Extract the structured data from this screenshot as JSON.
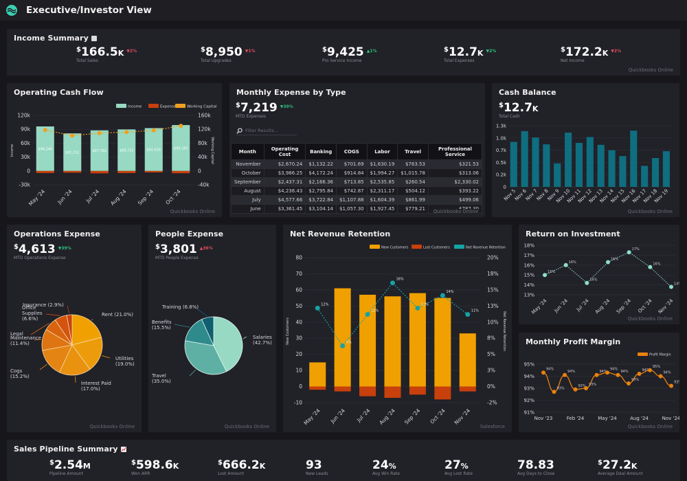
{
  "app": {
    "title": "Executive/Investor View",
    "logo_icon": "wave-logo-icon"
  },
  "income_summary": {
    "title": "Income Summary",
    "title_icon": "notebook-icon",
    "source": "Quickbooks Online",
    "kpis": [
      {
        "currency": "$",
        "value": "166.5",
        "suffix": "K",
        "delta": "▼2%",
        "delta_class": "down-red",
        "label": "Total Sales"
      },
      {
        "currency": "$",
        "value": "8,950",
        "suffix": "",
        "delta": "▼1%",
        "delta_class": "down-red",
        "label": "Total Upgrades"
      },
      {
        "currency": "$",
        "value": "9,425",
        "suffix": "",
        "delta": "▲1%",
        "delta_class": "up-green",
        "label": "Pro Service Income"
      },
      {
        "currency": "$",
        "value": "12.7",
        "suffix": "K",
        "delta": "▼2%",
        "delta_class": "down-green",
        "label": "Total Expenses"
      },
      {
        "currency": "$",
        "value": "172.2",
        "suffix": "K",
        "delta": "▼2%",
        "delta_class": "down-red",
        "label": "Net Income"
      }
    ]
  },
  "operating_cash_flow": {
    "title": "Operating Cash Flow",
    "source": "Quickbooks Online",
    "chart_data": {
      "type": "bar",
      "categories": [
        "May '24",
        "Jun '24",
        "Jul '24",
        "Aug '24",
        "Sep '24",
        "Oct '24"
      ],
      "series": [
        {
          "name": "Income",
          "values": [
            96246,
            81252,
            87782,
            89753,
            92616,
            99283
          ],
          "labels": [
            "$96,246",
            "$81,252",
            "$87,782",
            "$89,753",
            "$92,616",
            "$99,283"
          ],
          "color": "#97d9c2"
        },
        {
          "name": "Expenses",
          "values": [
            -4500,
            -3800,
            -5200,
            -4600,
            -3200,
            -5000
          ],
          "color": "#c8400c"
        },
        {
          "name": "Working Capital",
          "values": [
            118000,
            102000,
            109000,
            112000,
            117000,
            130000
          ],
          "color": "#f0a020",
          "axis": "right"
        }
      ],
      "ylabel": "Income",
      "y2label": "Working Capital",
      "ylim": [
        -30000,
        120000
      ],
      "y2lim": [
        -40000,
        160000
      ],
      "yticks": [
        "-30k",
        "0",
        "30k",
        "60k",
        "90k",
        "120k"
      ],
      "y2ticks": [
        "-40k",
        "0",
        "40k",
        "80k",
        "120k",
        "160k"
      ],
      "legend": [
        "Income",
        "Expenses",
        "Working Capital"
      ],
      "legend_position": "top-right"
    }
  },
  "monthly_expense": {
    "title": "Monthly Expense by Type",
    "kpi": {
      "currency": "$",
      "value": "7,219",
      "delta": "▼39%",
      "label": "MTD Expenses"
    },
    "filter_placeholder": "Filter Results...",
    "source": "Quickbooks Online",
    "columns": [
      "Month",
      "Operating Cost",
      "Banking",
      "COGS",
      "Labor",
      "Travel",
      "Professional Service"
    ],
    "rows": [
      [
        "November",
        "$2,670.24",
        "$1,132.22",
        "$701.69",
        "$1,630.19",
        "$763.53",
        "$321.53"
      ],
      [
        "October",
        "$3,986.25",
        "$4,172.24",
        "$914.84",
        "$1,994.27",
        "$1,015.78",
        "$313.06"
      ],
      [
        "September",
        "$2,437.31",
        "$2,166.36",
        "$713.85",
        "$2,535.85",
        "$260.54",
        "$2,330.02"
      ],
      [
        "August",
        "$4,236.43",
        "$2,795.84",
        "$742.87",
        "$2,311.17",
        "$504.12",
        "$393.22"
      ],
      [
        "July",
        "$4,577.66",
        "$3,722.84",
        "$1,107.88",
        "$1,604.39",
        "$861.99",
        "$499.06"
      ],
      [
        "June",
        "$3,361.45",
        "$3,104.14",
        "$1,057.30",
        "$1,927.45",
        "$779.21",
        "$787.30"
      ]
    ]
  },
  "cash_balance": {
    "title": "Cash Balance",
    "kpi": {
      "currency": "$",
      "value": "12.7",
      "suffix": "K",
      "label": "Total Cash"
    },
    "source": "Quickbooks Online",
    "chart_data": {
      "type": "bar",
      "categories": [
        "Nov 5",
        "Nov 6",
        "Nov 7",
        "Nov 8",
        "Nov 9",
        "Nov 10",
        "Nov 11",
        "Nov 12",
        "Nov 13",
        "Nov 14",
        "Nov 15",
        "Nov 16",
        "Nov 17",
        "Nov 18",
        "Nov 19"
      ],
      "values": [
        920,
        1140,
        1010,
        870,
        480,
        1110,
        900,
        1020,
        860,
        750,
        630,
        1150,
        430,
        590,
        730
      ],
      "ylim": [
        0,
        1250
      ],
      "yticks": [
        "0",
        "0.2k",
        "0.5k",
        "0.7k",
        "1.0k",
        "1.3k"
      ],
      "color": "#0f6e80"
    }
  },
  "operations_expense": {
    "title": "Operations Expense",
    "kpi": {
      "currency": "$",
      "value": "4,613",
      "delta": "▼39%",
      "label": "MTD Operations Expense"
    },
    "source": "Quickbooks Online",
    "chart_data": {
      "type": "pie",
      "slices": [
        {
          "label": "Rent",
          "pct": 21.0,
          "color": "#f0a000"
        },
        {
          "label": "Utilities",
          "pct": 19.0,
          "color": "#ec9c0a"
        },
        {
          "label": "Interest Paid",
          "pct": 17.0,
          "color": "#e89210"
        },
        {
          "label": "Cogs",
          "pct": 15.2,
          "color": "#e48412"
        },
        {
          "label": "Maintenance",
          "pct": 11.4,
          "color": "#de7412"
        },
        {
          "label": "Legal",
          "pct": 7.0,
          "color": "#d86410"
        },
        {
          "label": "Office Supplies",
          "pct": 6.6,
          "color": "#d2540e"
        },
        {
          "label": "Insurance",
          "pct": 2.9,
          "color": "#c8420c"
        }
      ],
      "labels": [
        "Rent (21.0%)",
        "Utilities (19.0%)",
        "Interest Paid (17.0%)",
        "Cogs (15.2%)",
        "Maintenance (11.4%)",
        "Legal (7.0%)",
        "Office Supplies (6.6%)",
        "Insurance (2.9%)"
      ]
    }
  },
  "people_expense": {
    "title": "People Expense",
    "kpi": {
      "currency": "$",
      "value": "3,801",
      "delta": "▲36%",
      "label": "MTD People Expense"
    },
    "source": "Quickbooks Online",
    "chart_data": {
      "type": "pie",
      "slices": [
        {
          "label": "Salaries",
          "pct": 42.7,
          "color": "#97d9c2"
        },
        {
          "label": "Travel",
          "pct": 35.0,
          "color": "#5fb0a4"
        },
        {
          "label": "Benefits",
          "pct": 15.5,
          "color": "#2f8a8c"
        },
        {
          "label": "Training",
          "pct": 6.8,
          "color": "#105f70"
        }
      ],
      "labels": [
        "Salaries (42.7%)",
        "Travel (35.0%)",
        "Benefits (15.5%)",
        "Training (6.8%)"
      ]
    }
  },
  "net_revenue_retention": {
    "title": "Net Revenue Retention",
    "source": "Salesforce",
    "chart_data": {
      "type": "bar",
      "categories": [
        "May '24",
        "Jun '24",
        "Jul '24",
        "Aug '24",
        "Sep '24",
        "Oct '24",
        "Nov '24"
      ],
      "series": [
        {
          "name": "New Customers",
          "values": [
            15,
            61,
            57,
            56,
            58,
            55,
            33
          ],
          "color": "#f0a000"
        },
        {
          "name": "Lost Customers",
          "values": [
            -2,
            -3,
            -6,
            -7,
            -5,
            -8,
            -3
          ],
          "color": "#c8400c"
        },
        {
          "name": "Net Revenue Retention",
          "values": [
            12,
            6,
            11,
            16,
            12,
            14,
            11
          ],
          "labels": [
            "12%",
            "6%",
            "11%",
            "16%",
            "12%",
            "14%",
            "11%"
          ],
          "color": "#17a2a4",
          "axis": "right"
        }
      ],
      "ylabel": "New Customers",
      "y2label": "Net Revenue Retention",
      "ylim": [
        -10,
        80
      ],
      "yticks": [
        "-10",
        "0",
        "10",
        "20",
        "30",
        "40",
        "50",
        "60",
        "70",
        "80"
      ],
      "y2ticks": [
        "-2%",
        "0%",
        "3%",
        "5%",
        "8%",
        "10%",
        "13%",
        "15%",
        "18%",
        "20%"
      ],
      "legend": [
        "New Customers",
        "Lost Customers",
        "Net Revenue Retention"
      ],
      "legend_position": "top-right"
    }
  },
  "roi": {
    "title": "Return on Investment",
    "source": "Quickbooks Online",
    "chart_data": {
      "type": "line",
      "categories": [
        "May '24",
        "Jun '24",
        "Jul '24",
        "Aug '24",
        "Sep '24",
        "Oct '24",
        "Nov '24"
      ],
      "values": [
        15.0,
        16.0,
        14.2,
        16.3,
        17.3,
        15.8,
        13.8
      ],
      "labels": [
        "15%",
        "16%",
        "14%",
        "16%",
        "17%",
        "16%",
        "14%"
      ],
      "ylim": [
        13,
        18
      ],
      "yticks": [
        "13%",
        "14%",
        "15%",
        "16%",
        "17%",
        "18%"
      ],
      "color": "#8ee0c8"
    }
  },
  "profit_margin": {
    "title": "Monthly Profit Margin",
    "source": "Quickbooks Online",
    "chart_data": {
      "type": "line",
      "x": [
        "Nov '23",
        "Dec '23",
        "Jan '24",
        "Feb '24",
        "Mar '24",
        "Apr '24",
        "May '24",
        "Jun '24",
        "Jul '24",
        "Aug '24",
        "Sep '24",
        "Oct '24",
        "Nov '24"
      ],
      "xticks": [
        "Nov '23",
        "Feb '24",
        "May '24",
        "Aug '24",
        "Nov '24"
      ],
      "values": [
        94.3,
        92.7,
        94.1,
        92.9,
        93.0,
        94.1,
        94.3,
        94.1,
        93.4,
        94.2,
        94.5,
        94.0,
        93.2
      ],
      "labels": [
        "94%",
        "93%",
        "94%",
        "93%",
        "93%",
        "94%",
        "94%",
        "94%",
        "93%",
        "94%",
        "95%",
        "94%",
        "93%"
      ],
      "ylim": [
        91,
        95
      ],
      "yticks": [
        "91%",
        "92%",
        "93%",
        "94%",
        "95%"
      ],
      "legend": [
        "Profit Margin"
      ],
      "legend_position": "top-right",
      "color": "#e8820e"
    }
  },
  "sales_pipeline": {
    "title": "Sales Pipeline Summary",
    "title_icon": "chart-up-icon",
    "kpis": [
      {
        "currency": "$",
        "value": "2.54",
        "suffix": "M",
        "label": "Pipeline Amount"
      },
      {
        "currency": "$",
        "value": "598.6",
        "suffix": "K",
        "label": "Won ARR"
      },
      {
        "currency": "$",
        "value": "666.2",
        "suffix": "K",
        "label": "Lost Amount"
      },
      {
        "currency": "",
        "value": "93",
        "suffix": "",
        "label": "New Leads"
      },
      {
        "currency": "",
        "value": "24",
        "suffix": "%",
        "label": "Avg Win Rate"
      },
      {
        "currency": "",
        "value": "27",
        "suffix": "%",
        "label": "Avg Lost Rate"
      },
      {
        "currency": "",
        "value": "78.83",
        "suffix": "",
        "label": "Avg Days to Close"
      },
      {
        "currency": "$",
        "value": "27.2",
        "suffix": "K",
        "label": "Average Deal Amount"
      }
    ]
  }
}
